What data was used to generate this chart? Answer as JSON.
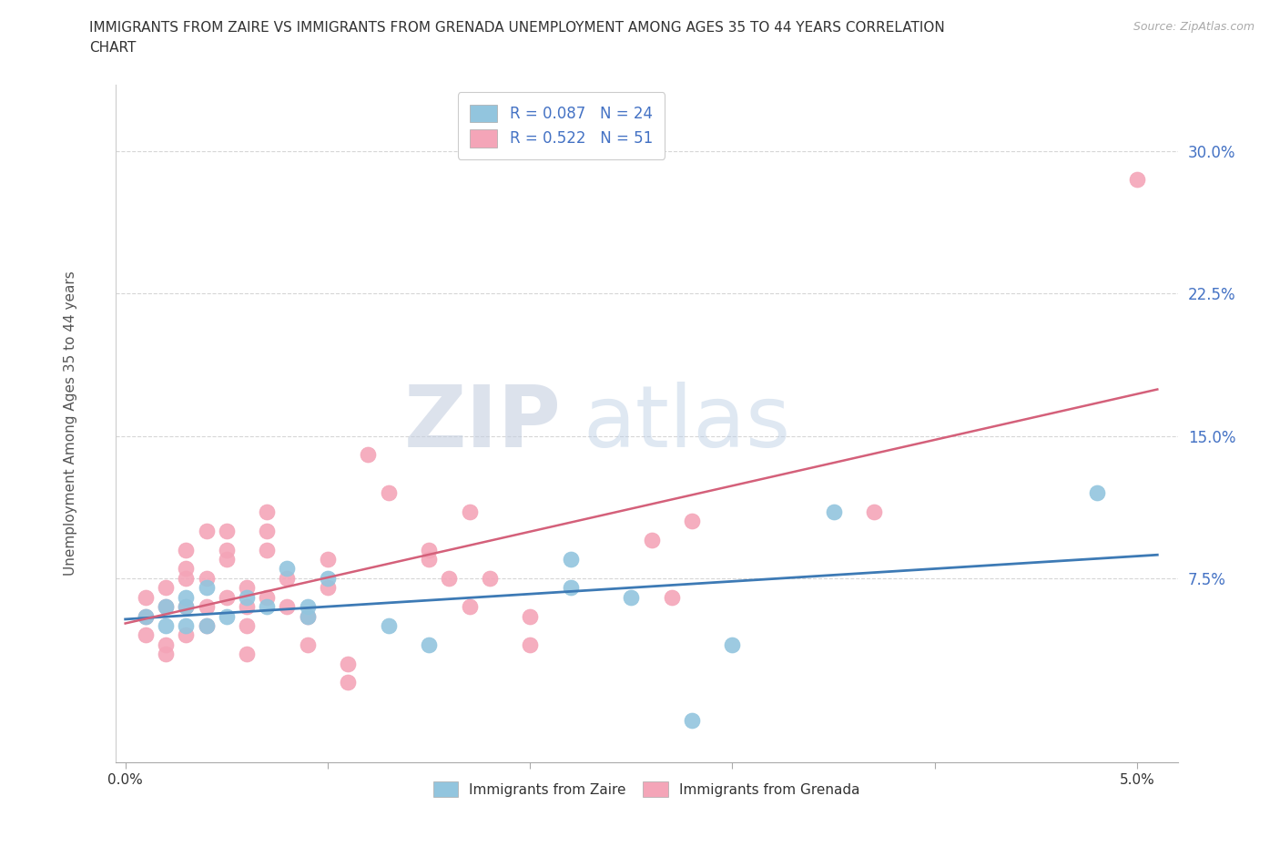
{
  "title_line1": "IMMIGRANTS FROM ZAIRE VS IMMIGRANTS FROM GRENADA UNEMPLOYMENT AMONG AGES 35 TO 44 YEARS CORRELATION",
  "title_line2": "CHART",
  "source": "Source: ZipAtlas.com",
  "ylabel": "Unemployment Among Ages 35 to 44 years",
  "ytick_vals": [
    0.075,
    0.15,
    0.225,
    0.3
  ],
  "ytick_labels": [
    "7.5%",
    "15.0%",
    "22.5%",
    "30.0%"
  ],
  "xlim": [
    -0.0005,
    0.052
  ],
  "ylim": [
    -0.022,
    0.335
  ],
  "zaire_color": "#92c5de",
  "grenada_color": "#f4a5b8",
  "zaire_line_color": "#3d7ab5",
  "grenada_line_color": "#d4607a",
  "legend_zaire_R": "R = 0.087",
  "legend_zaire_N": "N = 24",
  "legend_grenada_R": "R = 0.522",
  "legend_grenada_N": "N = 51",
  "background_color": "#ffffff",
  "zaire_x": [
    0.001,
    0.002,
    0.002,
    0.003,
    0.003,
    0.003,
    0.004,
    0.004,
    0.005,
    0.006,
    0.007,
    0.008,
    0.009,
    0.009,
    0.01,
    0.013,
    0.015,
    0.022,
    0.022,
    0.025,
    0.028,
    0.03,
    0.035,
    0.048
  ],
  "zaire_y": [
    0.055,
    0.05,
    0.06,
    0.06,
    0.05,
    0.065,
    0.05,
    0.07,
    0.055,
    0.065,
    0.06,
    0.08,
    0.06,
    0.055,
    0.075,
    0.05,
    0.04,
    0.085,
    0.07,
    0.065,
    0.0,
    0.04,
    0.11,
    0.12
  ],
  "grenada_x": [
    0.001,
    0.001,
    0.001,
    0.002,
    0.002,
    0.002,
    0.002,
    0.003,
    0.003,
    0.003,
    0.003,
    0.003,
    0.004,
    0.004,
    0.004,
    0.004,
    0.005,
    0.005,
    0.005,
    0.005,
    0.006,
    0.006,
    0.006,
    0.006,
    0.007,
    0.007,
    0.007,
    0.007,
    0.008,
    0.008,
    0.009,
    0.009,
    0.01,
    0.01,
    0.011,
    0.011,
    0.012,
    0.013,
    0.015,
    0.015,
    0.016,
    0.017,
    0.017,
    0.018,
    0.02,
    0.02,
    0.026,
    0.027,
    0.028,
    0.037,
    0.05
  ],
  "grenada_y": [
    0.045,
    0.065,
    0.055,
    0.06,
    0.07,
    0.04,
    0.035,
    0.045,
    0.06,
    0.075,
    0.08,
    0.09,
    0.075,
    0.1,
    0.05,
    0.06,
    0.065,
    0.085,
    0.09,
    0.1,
    0.035,
    0.05,
    0.06,
    0.07,
    0.065,
    0.09,
    0.1,
    0.11,
    0.075,
    0.06,
    0.04,
    0.055,
    0.085,
    0.07,
    0.03,
    0.02,
    0.14,
    0.12,
    0.085,
    0.09,
    0.075,
    0.06,
    0.11,
    0.075,
    0.04,
    0.055,
    0.095,
    0.065,
    0.105,
    0.11,
    0.285
  ]
}
